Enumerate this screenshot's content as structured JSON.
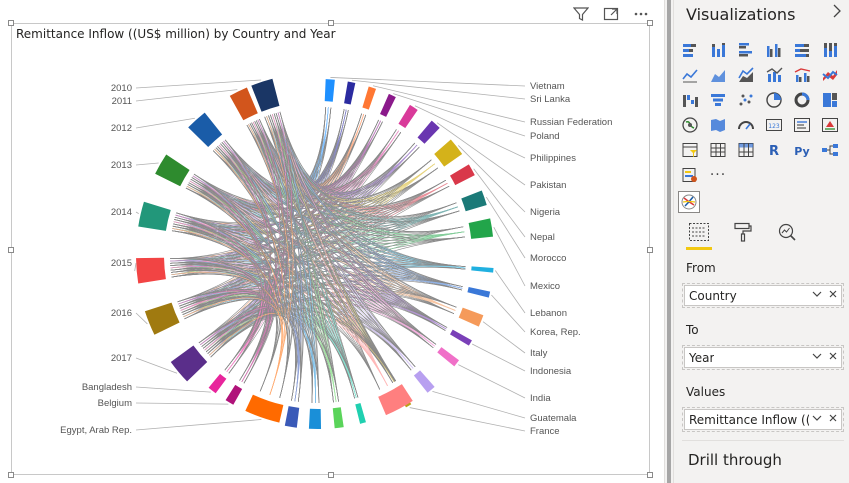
{
  "visual": {
    "title": "Remittance Inflow ((US$ million) by Country and Year",
    "header_icons": [
      "filter-icon",
      "focus-mode-icon",
      "more-options-icon"
    ]
  },
  "chord": {
    "years": [
      {
        "label": "2010",
        "color": "#1a3665"
      },
      {
        "label": "2011",
        "color": "#d2551c"
      },
      {
        "label": "2012",
        "color": "#1a5ca8"
      },
      {
        "label": "2013",
        "color": "#2e8b2e"
      },
      {
        "label": "2014",
        "color": "#22977a"
      },
      {
        "label": "2015",
        "color": "#f24444"
      },
      {
        "label": "2016",
        "color": "#a07a10"
      },
      {
        "label": "2017",
        "color": "#5a2e8a"
      }
    ],
    "countries_left": [
      {
        "label": "Bangladesh",
        "color": "#e8259c"
      },
      {
        "label": "Belgium",
        "color": "#b0127a"
      },
      {
        "label": "Egypt, Arab Rep.",
        "color": "#ff6a00"
      }
    ],
    "countries_right": [
      {
        "label": "Vietnam",
        "color": "#1e90ff"
      },
      {
        "label": "Sri Lanka",
        "color": "#2b2ba0"
      },
      {
        "label": "Russian Federation",
        "color": "#ff7733"
      },
      {
        "label": "Poland",
        "color": "#8b1a8b"
      },
      {
        "label": "Philippines",
        "color": "#d93a9a"
      },
      {
        "label": "Pakistan",
        "color": "#6a36b0"
      },
      {
        "label": "Nigeria",
        "color": "#d4b21a"
      },
      {
        "label": "Nepal",
        "color": "#d9384a"
      },
      {
        "label": "Morocco",
        "color": "#1b7a78"
      },
      {
        "label": "Mexico",
        "color": "#22a54a"
      },
      {
        "label": "Lebanon",
        "color": "#20b0e0"
      },
      {
        "label": "Korea, Rep.",
        "color": "#3a78d8"
      },
      {
        "label": "Italy",
        "color": "#f59a5a"
      },
      {
        "label": "Indonesia",
        "color": "#7a40b8"
      },
      {
        "label": "India",
        "color": "#f070c8"
      },
      {
        "label": "Guatemala",
        "color": "#b8a0f0"
      },
      {
        "label": "France",
        "color": "#bca018"
      }
    ],
    "bottom_arcs": [
      {
        "color": "#ff7f7f"
      },
      {
        "color": "#20d0b0"
      },
      {
        "color": "#5ad45a"
      },
      {
        "color": "#1a8fd8"
      },
      {
        "color": "#3a5ab8"
      }
    ]
  },
  "pane": {
    "title": "Visualizations",
    "tab_icons": [
      "fields-icon",
      "format-paint-icon",
      "analytics-icon"
    ],
    "wells": [
      {
        "label": "From",
        "value": "Country"
      },
      {
        "label": "To",
        "value": "Year"
      },
      {
        "label": "Values",
        "value": "Remittance Inflow ((US$"
      }
    ],
    "drill_through": "Drill through",
    "more_label": "···"
  }
}
